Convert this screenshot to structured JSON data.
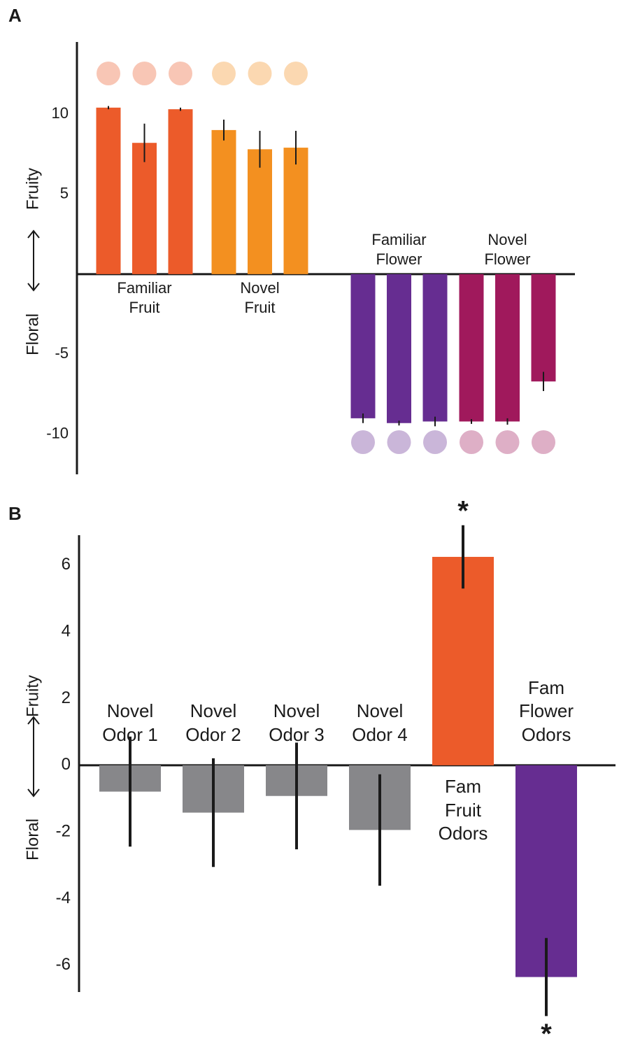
{
  "chart_data": [
    {
      "type": "bar",
      "panel_label": "A",
      "y_label_top": "Fruity",
      "y_label_bottom": "Floral",
      "ylim": [
        -12.5,
        14.5
      ],
      "yticks": [
        -10,
        -5,
        5,
        10
      ],
      "series": [
        {
          "name": "Familiar Fruit",
          "color": "#ec5b2a",
          "values": [
            10.4,
            8.2,
            10.3
          ],
          "errors": [
            0.1,
            1.2,
            0.1
          ]
        },
        {
          "name": "Novel Fruit",
          "color": "#f39020",
          "values": [
            9.0,
            7.8,
            7.9
          ],
          "errors": [
            0.65,
            1.15,
            1.05
          ]
        },
        {
          "name": "Familiar Flower",
          "color": "#662d91",
          "values": [
            -9.0,
            -9.3,
            -9.2
          ],
          "errors": [
            0.3,
            0.15,
            0.3
          ]
        },
        {
          "name": "Novel Flower",
          "color": "#a0195c",
          "values": [
            -9.2,
            -9.2,
            -6.7
          ],
          "errors": [
            0.15,
            0.2,
            0.6
          ]
        }
      ]
    },
    {
      "type": "bar",
      "panel_label": "B",
      "y_label_top": "Fruity",
      "y_label_bottom": "Floral",
      "ylim": [
        -6.8,
        6.9
      ],
      "yticks": [
        -6,
        -4,
        -2,
        0,
        2,
        4,
        6
      ],
      "categories": [
        "Novel Odor 1",
        "Novel Odor 2",
        "Novel Odor 3",
        "Novel Odor 4",
        "Fam Fruit Odors",
        "Fam Flower Odors"
      ],
      "values": [
        -0.79,
        -1.42,
        -0.92,
        -1.94,
        6.25,
        -6.35
      ],
      "errors": [
        1.65,
        1.63,
        1.6,
        1.67,
        0.95,
        1.17
      ],
      "colors": [
        "#87878a",
        "#87878a",
        "#87878a",
        "#87878a",
        "#ec5b2a",
        "#662d91"
      ],
      "significance": [
        null,
        null,
        null,
        null,
        "*",
        "*"
      ]
    }
  ]
}
